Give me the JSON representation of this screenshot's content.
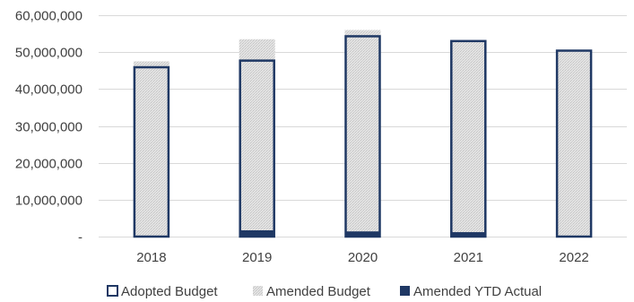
{
  "chart_data": {
    "type": "bar",
    "categories": [
      "2018",
      "2019",
      "2020",
      "2021",
      "2022"
    ],
    "ylim": [
      0,
      60000000
    ],
    "y_ticks": [
      {
        "value": 0,
        "label": "-"
      },
      {
        "value": 10000000,
        "label": "10,000,000"
      },
      {
        "value": 20000000,
        "label": "20,000,000"
      },
      {
        "value": 30000000,
        "label": "30,000,000"
      },
      {
        "value": 40000000,
        "label": "40,000,000"
      },
      {
        "value": 50000000,
        "label": "50,000,000"
      },
      {
        "value": 60000000,
        "label": "60,000,000"
      }
    ],
    "series": [
      {
        "name": "Adopted Budget",
        "values": [
          45900000,
          47700000,
          54300000,
          53000000,
          50400000
        ],
        "color": "#1f3864"
      },
      {
        "name": "Amended Budget",
        "values": [
          47500000,
          53500000,
          56000000,
          53000000,
          50400000
        ],
        "color": "#d9d9d9"
      },
      {
        "name": "Amended YTD Actual",
        "values": [
          0,
          1700000,
          1400000,
          1200000,
          200000
        ],
        "color": "#1f3864"
      }
    ],
    "grid": true,
    "legend_position": "bottom",
    "title": "",
    "xlabel": "",
    "ylabel": ""
  }
}
